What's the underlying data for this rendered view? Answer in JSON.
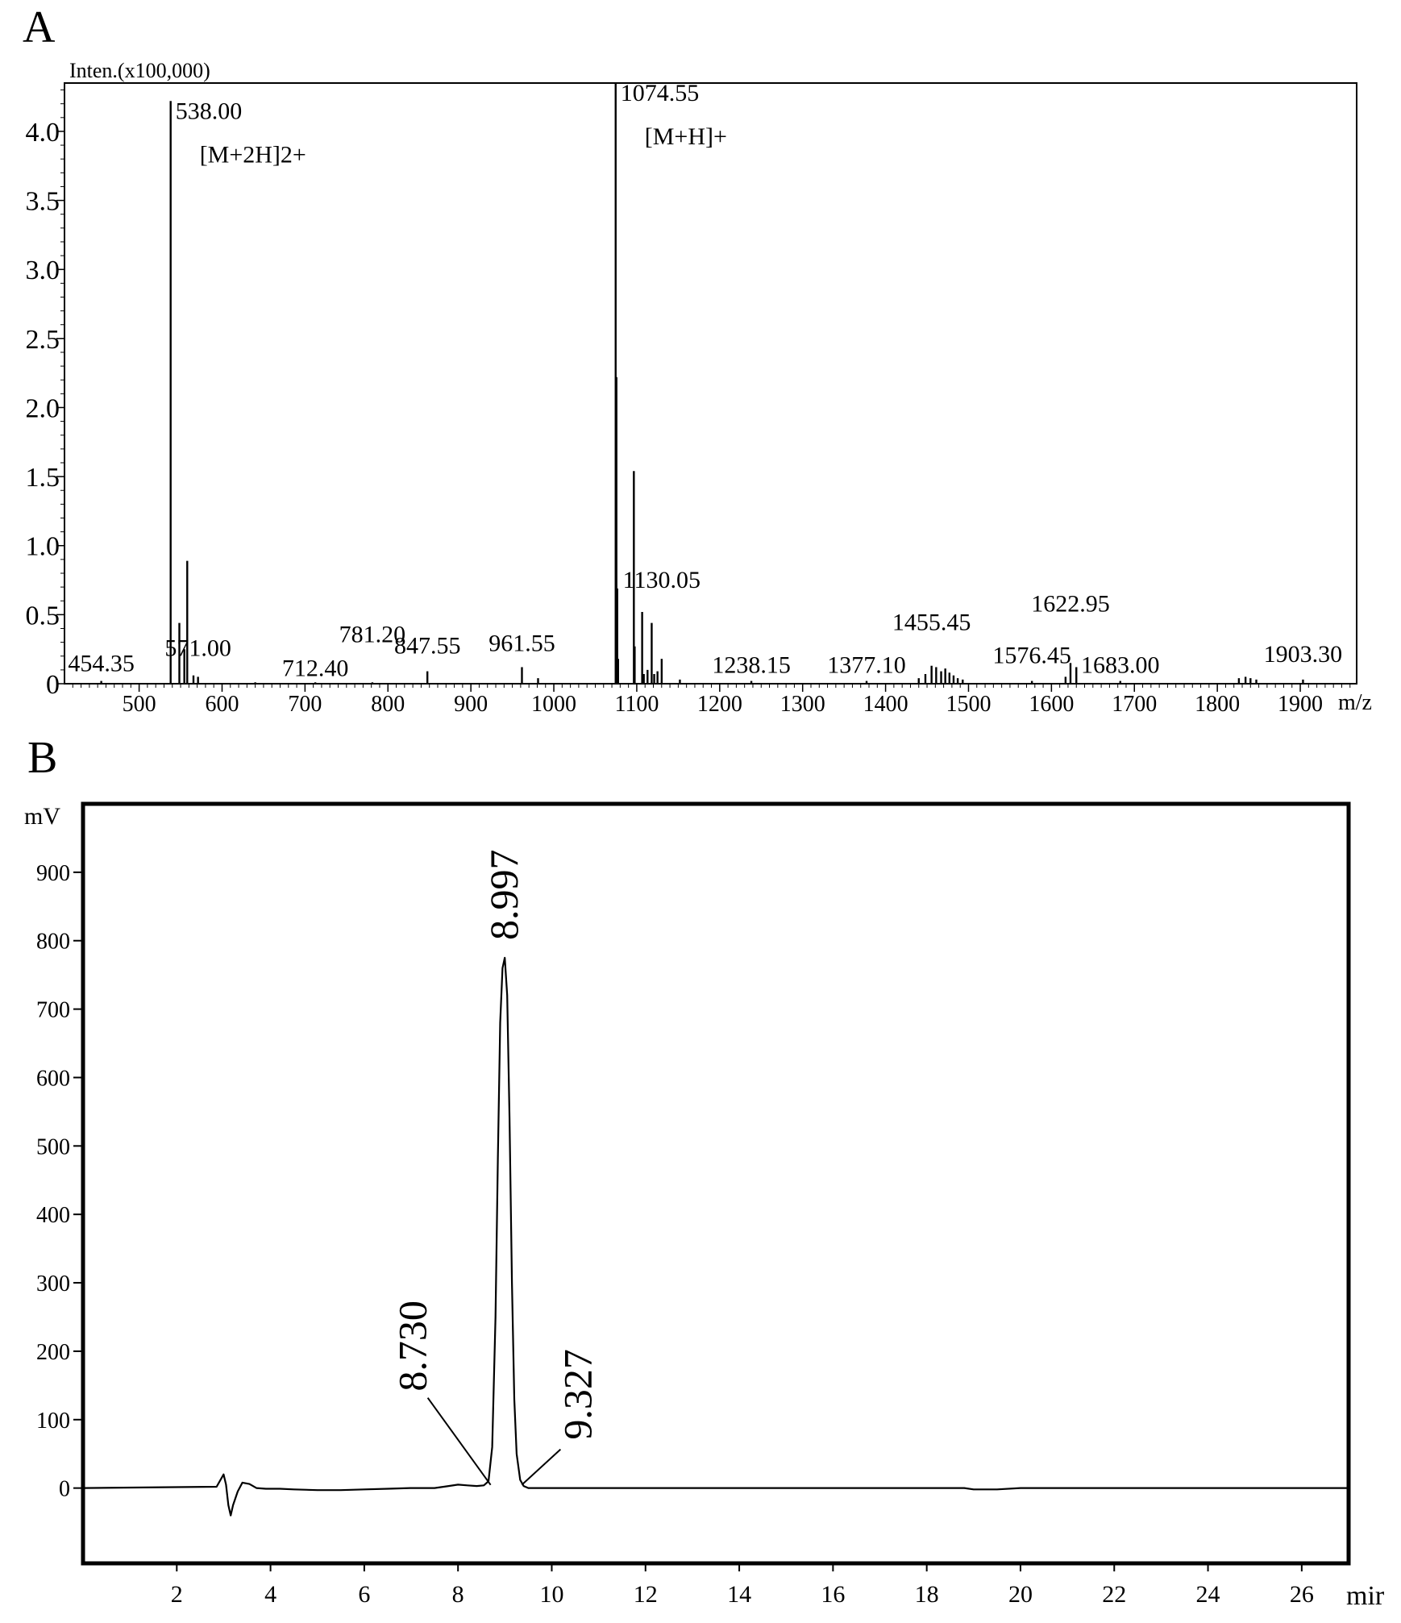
{
  "figure": {
    "panel_a_letter": "A",
    "panel_b_letter": "B"
  },
  "chart_data": [
    {
      "type": "bar",
      "subtype": "mass-spectrum",
      "title": "",
      "ylabel": "Inten.(x100,000)",
      "xlabel": "m/z",
      "xlim": [
        410,
        1968
      ],
      "ylim": [
        0,
        4.35
      ],
      "x_ticks": [
        500,
        600,
        700,
        800,
        900,
        1000,
        1100,
        1200,
        1300,
        1400,
        1500,
        1600,
        1700,
        1800,
        1900
      ],
      "y_ticks": [
        0,
        0.5,
        1.0,
        1.5,
        2.0,
        2.5,
        3.0,
        3.5,
        4.0
      ],
      "y_tick_labels": [
        "0",
        "0.5",
        "1.0",
        "1.5",
        "2.0",
        "2.5",
        "3.0",
        "3.5",
        "4.0"
      ],
      "grid": false,
      "peaks": [
        {
          "mz": 454.35,
          "intensity": 0.02
        },
        {
          "mz": 538.0,
          "intensity": 4.22
        },
        {
          "mz": 548.5,
          "intensity": 0.44
        },
        {
          "mz": 554.5,
          "intensity": 0.25
        },
        {
          "mz": 558.0,
          "intensity": 0.89
        },
        {
          "mz": 565.5,
          "intensity": 0.06
        },
        {
          "mz": 571.0,
          "intensity": 0.05
        },
        {
          "mz": 640.0,
          "intensity": 0.01
        },
        {
          "mz": 712.4,
          "intensity": 0.01
        },
        {
          "mz": 781.2,
          "intensity": 0.01
        },
        {
          "mz": 847.55,
          "intensity": 0.09
        },
        {
          "mz": 961.55,
          "intensity": 0.12
        },
        {
          "mz": 981.0,
          "intensity": 0.04
        },
        {
          "mz": 1074.55,
          "intensity": 4.35
        },
        {
          "mz": 1075.5,
          "intensity": 2.22
        },
        {
          "mz": 1076.5,
          "intensity": 0.69
        },
        {
          "mz": 1077.5,
          "intensity": 0.18
        },
        {
          "mz": 1096.5,
          "intensity": 1.54
        },
        {
          "mz": 1097.5,
          "intensity": 0.27
        },
        {
          "mz": 1106.5,
          "intensity": 0.52
        },
        {
          "mz": 1108.5,
          "intensity": 0.07
        },
        {
          "mz": 1113.0,
          "intensity": 0.1
        },
        {
          "mz": 1118.0,
          "intensity": 0.44
        },
        {
          "mz": 1121.0,
          "intensity": 0.07
        },
        {
          "mz": 1125.0,
          "intensity": 0.09
        },
        {
          "mz": 1130.05,
          "intensity": 0.18
        },
        {
          "mz": 1152.0,
          "intensity": 0.03
        },
        {
          "mz": 1238.15,
          "intensity": 0.02
        },
        {
          "mz": 1377.1,
          "intensity": 0.02
        },
        {
          "mz": 1440.0,
          "intensity": 0.04
        },
        {
          "mz": 1448.0,
          "intensity": 0.07
        },
        {
          "mz": 1455.45,
          "intensity": 0.13
        },
        {
          "mz": 1461.0,
          "intensity": 0.12
        },
        {
          "mz": 1467.0,
          "intensity": 0.09
        },
        {
          "mz": 1472.0,
          "intensity": 0.11
        },
        {
          "mz": 1477.0,
          "intensity": 0.08
        },
        {
          "mz": 1482.0,
          "intensity": 0.06
        },
        {
          "mz": 1487.0,
          "intensity": 0.04
        },
        {
          "mz": 1493.0,
          "intensity": 0.03
        },
        {
          "mz": 1576.45,
          "intensity": 0.02
        },
        {
          "mz": 1617.0,
          "intensity": 0.05
        },
        {
          "mz": 1622.95,
          "intensity": 0.15
        },
        {
          "mz": 1630.0,
          "intensity": 0.12
        },
        {
          "mz": 1683.0,
          "intensity": 0.02
        },
        {
          "mz": 1826.0,
          "intensity": 0.04
        },
        {
          "mz": 1834.0,
          "intensity": 0.05
        },
        {
          "mz": 1840.0,
          "intensity": 0.04
        },
        {
          "mz": 1847.0,
          "intensity": 0.03
        },
        {
          "mz": 1903.3,
          "intensity": 0.03
        }
      ],
      "peak_labels": [
        {
          "mz": 454.35,
          "text": "454.35",
          "dy": -12
        },
        {
          "mz": 538.0,
          "text": "538.00",
          "annotation": "[M+2H]2+"
        },
        {
          "mz": 571.0,
          "text": "571.00",
          "dy": -26
        },
        {
          "mz": 712.4,
          "text": "712.40",
          "dy": -8
        },
        {
          "mz": 781.2,
          "text": "781.20",
          "dy": -50
        },
        {
          "mz": 847.55,
          "text": "847.55",
          "dy": -22
        },
        {
          "mz": 961.55,
          "text": "961.55",
          "dy": -20
        },
        {
          "mz": 1074.55,
          "text": "1074.55",
          "annotation": "[M+H]+"
        },
        {
          "mz": 1130.05,
          "text": "1130.05",
          "dy": -88
        },
        {
          "mz": 1238.15,
          "text": "1238.15",
          "dy": -10
        },
        {
          "mz": 1377.1,
          "text": "1377.10",
          "dy": -10
        },
        {
          "mz": 1455.45,
          "text": "1455.45",
          "dy": -44
        },
        {
          "mz": 1576.45,
          "text": "1576.45",
          "dy": -22
        },
        {
          "mz": 1622.95,
          "text": "1622.95",
          "dy": -64
        },
        {
          "mz": 1683.0,
          "text": "1683.00",
          "dy": -10
        },
        {
          "mz": 1903.3,
          "text": "1903.30",
          "dy": -22
        }
      ]
    },
    {
      "type": "line",
      "subtype": "chromatogram",
      "title": "",
      "ylabel": "mV",
      "xlabel": "mir",
      "xlim": [
        0,
        27.0
      ],
      "ylim": [
        -110,
        1000
      ],
      "x_ticks": [
        2,
        4,
        6,
        8,
        10,
        12,
        14,
        16,
        18,
        20,
        22,
        24,
        26
      ],
      "y_ticks": [
        0,
        100,
        200,
        300,
        400,
        500,
        600,
        700,
        800,
        900
      ],
      "grid": false,
      "series": [
        {
          "x": [
            0.0,
            2.85,
            3.0,
            3.05,
            3.1,
            3.15,
            3.2,
            3.3,
            3.4,
            3.55,
            3.7,
            3.9,
            4.2,
            4.5,
            5.0,
            5.5,
            6.0,
            6.5,
            7.0,
            7.5,
            7.8,
            8.0,
            8.2,
            8.4,
            8.55,
            8.65,
            8.73,
            8.8,
            8.85,
            8.9,
            8.95,
            8.997,
            9.05,
            9.1,
            9.15,
            9.2,
            9.25,
            9.327,
            9.4,
            9.5,
            10.0,
            12.0,
            15.0,
            18.8,
            19.0,
            19.5,
            20.0,
            23.0,
            27.0
          ],
          "y": [
            0,
            2,
            20,
            5,
            -25,
            -40,
            -25,
            -5,
            8,
            6,
            0,
            -1,
            -1,
            -2,
            -3,
            -3,
            -2,
            -1,
            0,
            0,
            3,
            5,
            4,
            3,
            4,
            10,
            60,
            250,
            480,
            680,
            760,
            775,
            720,
            540,
            300,
            130,
            50,
            12,
            3,
            0,
            0,
            0,
            0,
            0,
            -2,
            -2,
            0,
            0,
            0
          ]
        }
      ],
      "peak_annotations": [
        {
          "time": 8.73,
          "text": "8.730"
        },
        {
          "time": 8.997,
          "text": "8.997"
        },
        {
          "time": 9.327,
          "text": "9.327"
        }
      ]
    }
  ]
}
